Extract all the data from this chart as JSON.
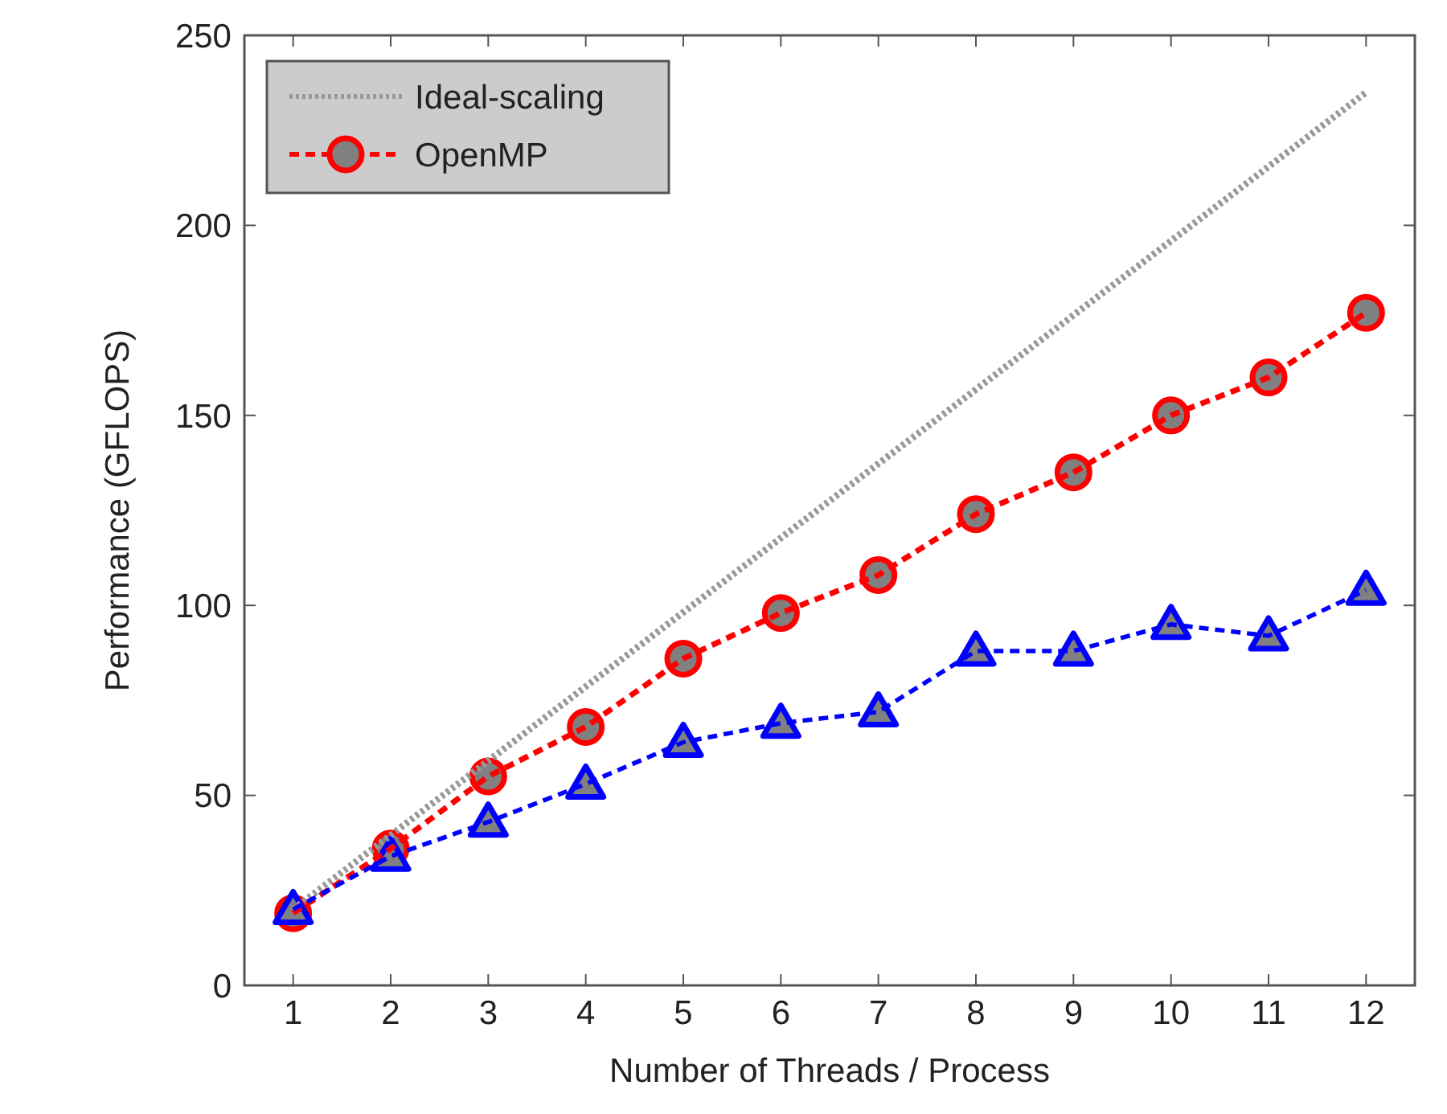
{
  "chart_data": {
    "type": "line",
    "xlabel": "Number of Threads / Process",
    "ylabel": "Performance (GFLOPS)",
    "x": [
      1,
      2,
      3,
      4,
      5,
      6,
      7,
      8,
      9,
      10,
      11,
      12
    ],
    "xlim": [
      0.5,
      12.5
    ],
    "xticks": [
      1,
      2,
      3,
      4,
      5,
      6,
      7,
      8,
      9,
      10,
      11,
      12
    ],
    "ylim": [
      0,
      250
    ],
    "yticks": [
      0,
      50,
      100,
      150,
      200,
      250
    ],
    "grid": false,
    "legend": "top left",
    "series": [
      {
        "name": "Ideal-scaling",
        "color": "#999999",
        "x": [
          1,
          12
        ],
        "values": [
          20,
          235
        ],
        "marker": "none",
        "line_style": "dotted"
      },
      {
        "name": "OpenMP",
        "color": "#ff0000",
        "values": [
          19,
          36,
          55,
          68,
          86,
          98,
          108,
          124,
          135,
          150,
          160,
          177
        ],
        "marker": "circle",
        "line_style": "dashed"
      },
      {
        "color": "#0000ff",
        "values": [
          20,
          34,
          43,
          53,
          64,
          69,
          72,
          88,
          88,
          95,
          92,
          104
        ],
        "marker": "triangle",
        "line_style": "dashed"
      }
    ]
  }
}
